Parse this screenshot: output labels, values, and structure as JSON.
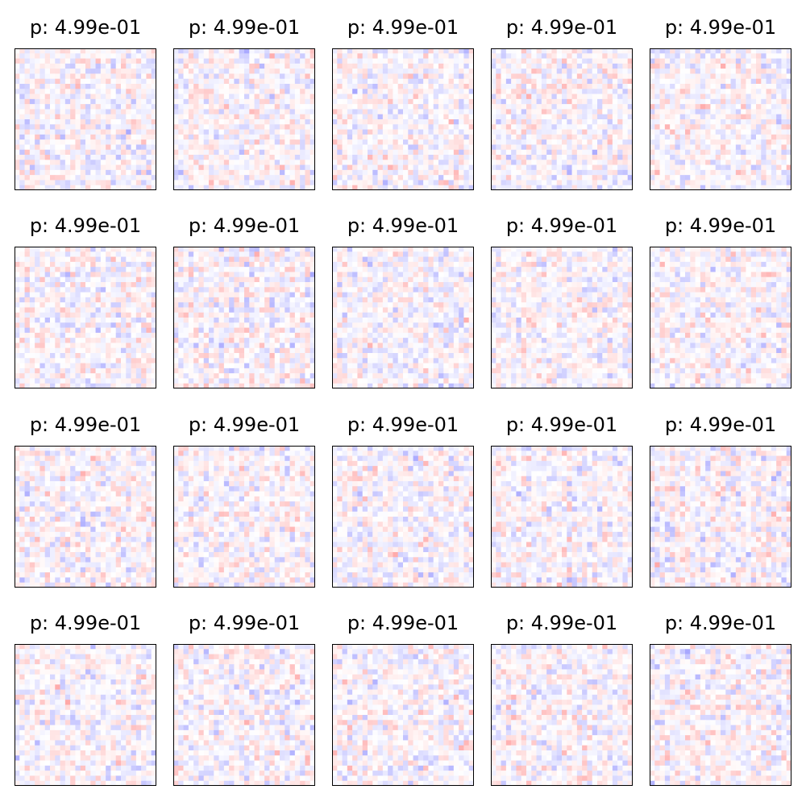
{
  "chart_data": {
    "type": "heatmap",
    "layout": {
      "rows": 4,
      "cols": 5
    },
    "grid_size": 28,
    "colormap": "bwr",
    "colormap_colors": {
      "low": "#0000ff",
      "mid": "#ffffff",
      "high": "#ff0000"
    },
    "value_range": [
      -1,
      1
    ],
    "value_spread": 0.22,
    "axes_ticks": false,
    "panels": [
      {
        "title": "p: 4.99e-01",
        "seed": 11
      },
      {
        "title": "p: 4.99e-01",
        "seed": 23
      },
      {
        "title": "p: 4.99e-01",
        "seed": 37
      },
      {
        "title": "p: 4.99e-01",
        "seed": 41
      },
      {
        "title": "p: 4.99e-01",
        "seed": 53
      },
      {
        "title": "p: 4.99e-01",
        "seed": 67
      },
      {
        "title": "p: 4.99e-01",
        "seed": 71
      },
      {
        "title": "p: 4.99e-01",
        "seed": 83
      },
      {
        "title": "p: 4.99e-01",
        "seed": 97
      },
      {
        "title": "p: 4.99e-01",
        "seed": 101
      },
      {
        "title": "p: 4.99e-01",
        "seed": 113
      },
      {
        "title": "p: 4.99e-01",
        "seed": 127
      },
      {
        "title": "p: 4.99e-01",
        "seed": 131
      },
      {
        "title": "p: 4.99e-01",
        "seed": 149
      },
      {
        "title": "p: 4.99e-01",
        "seed": 157
      },
      {
        "title": "p: 4.99e-01",
        "seed": 163
      },
      {
        "title": "p: 4.99e-01",
        "seed": 179
      },
      {
        "title": "p: 4.99e-01",
        "seed": 181
      },
      {
        "title": "p: 4.99e-01",
        "seed": 191
      },
      {
        "title": "p: 4.99e-01",
        "seed": 199
      }
    ]
  }
}
